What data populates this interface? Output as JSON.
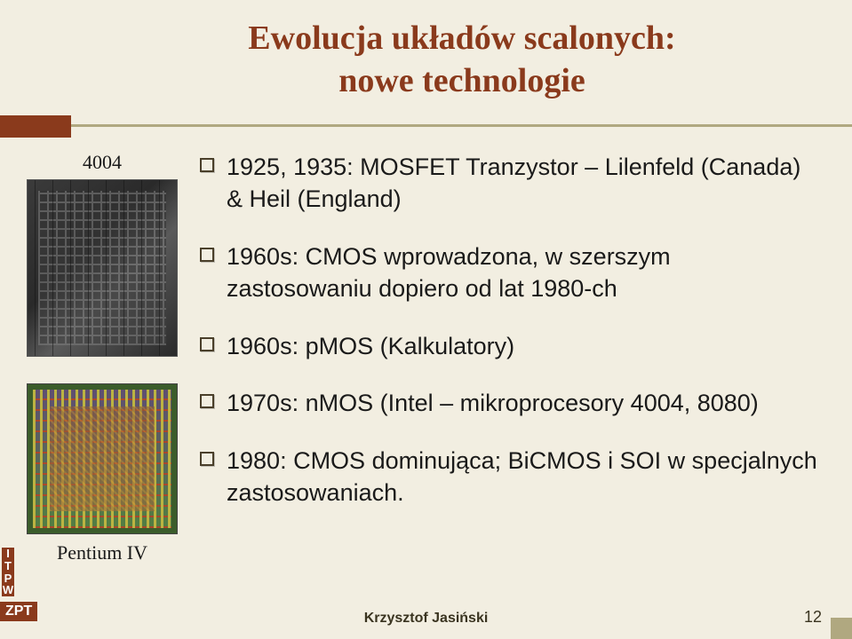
{
  "title": {
    "line1": "Ewolucja układów scalonych:",
    "line2": "nowe technologie"
  },
  "left": {
    "chip1_label": "4004",
    "chip2_label": "Pentium IV"
  },
  "bullets": [
    "1925, 1935: MOSFET Tranzystor – Lilenfeld (Canada) & Heil (England)",
    "1960s: CMOS wprowadzona, w szerszym zastosowaniu dopiero od lat 1980-ch",
    "1960s: pMOS (Kalkulatory)",
    "1970s: nMOS (Intel – mikroprocesory 4004, 8080)",
    "1980: CMOS dominująca; BiCMOS i SOI w specjalnych zastosowaniach."
  ],
  "footer": {
    "itpw": [
      "I",
      "T",
      "P",
      "W"
    ],
    "zpt": "ZPT",
    "author": "Krzysztof Jasiński",
    "page": "12"
  },
  "colors": {
    "background": "#f2eee1",
    "accent": "#8a3a1c",
    "text": "#1a1a1a",
    "muted_line": "#b0a880"
  }
}
